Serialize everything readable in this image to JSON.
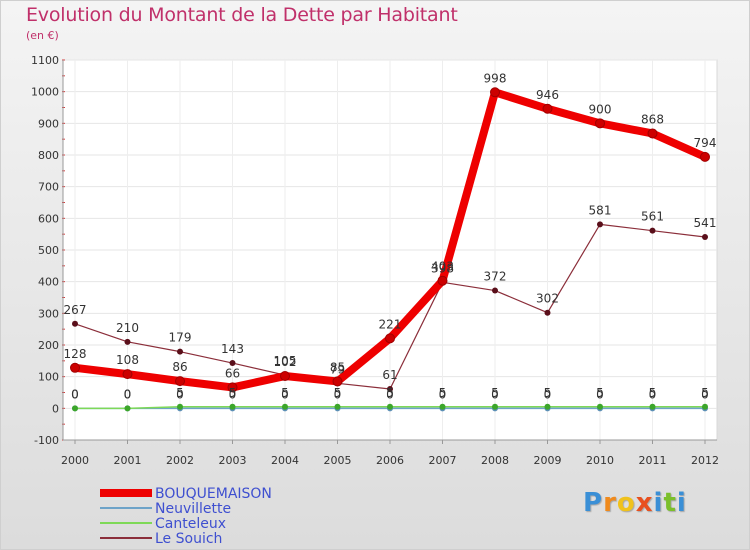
{
  "header": {
    "title": "Evolution du Montant de la Dette par Habitant",
    "unit": "(en €)"
  },
  "brand": {
    "letters": [
      "P",
      "r",
      "o",
      "x",
      "i",
      "t",
      "i"
    ],
    "colors": [
      "#3a8fd6",
      "#f08a1c",
      "#f0c21c",
      "#e8501f",
      "#3a8fd6",
      "#7bbf2a",
      "#3a8fd6"
    ]
  },
  "chart_data": {
    "type": "line",
    "title": "Evolution du Montant de la Dette par Habitant",
    "ylabel": "(en €)",
    "xlabel": "",
    "ylim": [
      -100,
      1100
    ],
    "yticks": [
      -100,
      0,
      100,
      200,
      300,
      400,
      500,
      600,
      700,
      800,
      900,
      1000,
      1100
    ],
    "categories": [
      "2000",
      "2001",
      "2002",
      "2003",
      "2004",
      "2005",
      "2006",
      "2007",
      "2008",
      "2009",
      "2010",
      "2011",
      "2012"
    ],
    "legend_position": "bottom-left",
    "series": [
      {
        "name": "Le Souich",
        "color": "#8b2e3a",
        "marker": "#5a0f1a",
        "width": 1.2,
        "values": [
          267,
          210,
          179,
          143,
          105,
          79,
          61,
          398,
          372,
          302,
          581,
          561,
          541
        ]
      },
      {
        "name": "Neuvillette",
        "color": "#6ea3c8",
        "marker": "#5b8fb5",
        "width": 1.5,
        "values": [
          0,
          0,
          0,
          0,
          0,
          0,
          0,
          0,
          0,
          0,
          0,
          0,
          0
        ]
      },
      {
        "name": "Canteleux",
        "color": "#7ed957",
        "marker": "#3ca62a",
        "width": 1.5,
        "values": [
          0,
          0,
          5,
          5,
          5,
          5,
          5,
          5,
          5,
          5,
          5,
          5,
          5
        ]
      },
      {
        "name": "BOUQUEMAISON",
        "color": "#ee0000",
        "marker": "#cc0000",
        "width": 8,
        "values": [
          128,
          108,
          86,
          66,
          102,
          85,
          221,
          403,
          998,
          946,
          900,
          868,
          794
        ]
      }
    ],
    "legend": [
      "BOUQUEMAISON",
      "Neuvillette",
      "Canteleux",
      "Le Souich"
    ]
  }
}
